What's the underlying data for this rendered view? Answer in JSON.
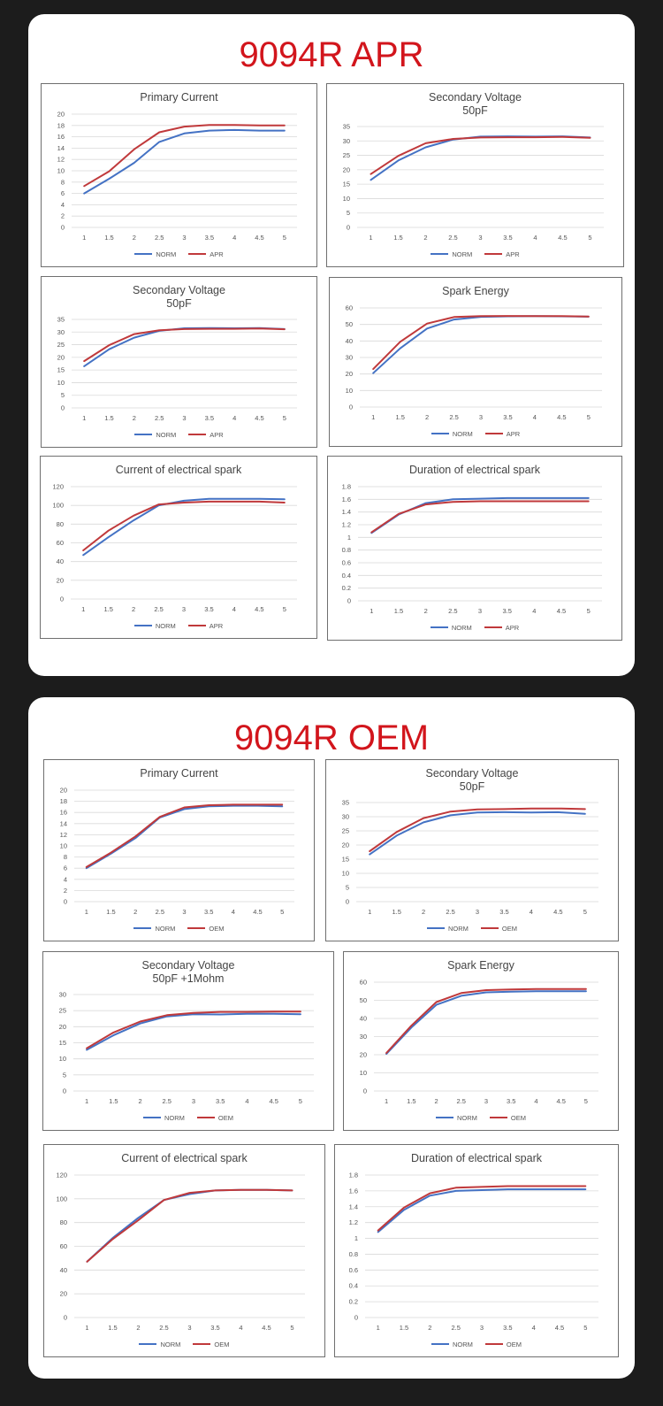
{
  "colors": {
    "norm": "#4472c4",
    "comp": "#c0393b",
    "heading": "#d2151c"
  },
  "sections": [
    {
      "title": "9094R APR"
    },
    {
      "title": "9094R OEM"
    }
  ],
  "chart_data": [
    {
      "type": "line",
      "section": "9094R APR",
      "title": "Primary Current",
      "subtitle": "",
      "x": [
        "1",
        "1.5",
        "2",
        "2.5",
        "3",
        "3.5",
        "4",
        "4.5",
        "5"
      ],
      "ylim": [
        0,
        20
      ],
      "yticks": [
        0,
        2,
        4,
        6,
        8,
        10,
        12,
        14,
        16,
        18,
        20
      ],
      "grid": true,
      "legend": "bottom",
      "series": [
        {
          "name": "NORM",
          "values": [
            6.0,
            8.6,
            11.4,
            15.1,
            16.6,
            17.1,
            17.2,
            17.1,
            17.1
          ]
        },
        {
          "name": "APR",
          "values": [
            7.3,
            9.9,
            13.8,
            16.8,
            17.8,
            18.1,
            18.1,
            18.0,
            18.0
          ]
        }
      ]
    },
    {
      "type": "line",
      "section": "9094R APR",
      "title": "Secondary Voltage",
      "subtitle": "50pF",
      "x": [
        "1",
        "1.5",
        "2",
        "2.5",
        "3",
        "3.5",
        "4",
        "4.5",
        "5"
      ],
      "ylim": [
        0,
        35
      ],
      "yticks": [
        0,
        5,
        10,
        15,
        20,
        25,
        30,
        35
      ],
      "grid": true,
      "legend": "bottom",
      "series": [
        {
          "name": "NORM",
          "values": [
            16.5,
            23.2,
            27.8,
            30.5,
            31.5,
            31.6,
            31.5,
            31.6,
            31.2
          ]
        },
        {
          "name": "APR",
          "values": [
            18.5,
            24.8,
            29.2,
            30.7,
            31.2,
            31.3,
            31.3,
            31.4,
            31.1
          ]
        }
      ]
    },
    {
      "type": "line",
      "section": "9094R APR",
      "title": "Secondary Voltage",
      "subtitle": "50pF",
      "x": [
        "1",
        "1.5",
        "2",
        "2.5",
        "3",
        "3.5",
        "4",
        "4.5",
        "5"
      ],
      "ylim": [
        0,
        35
      ],
      "yticks": [
        0,
        5,
        10,
        15,
        20,
        25,
        30,
        35
      ],
      "grid": true,
      "legend": "bottom",
      "series": [
        {
          "name": "NORM",
          "values": [
            16.5,
            23.2,
            27.8,
            30.5,
            31.5,
            31.6,
            31.5,
            31.6,
            31.2
          ]
        },
        {
          "name": "APR",
          "values": [
            18.5,
            24.8,
            29.2,
            30.7,
            31.2,
            31.3,
            31.3,
            31.4,
            31.1
          ]
        }
      ]
    },
    {
      "type": "line",
      "section": "9094R APR",
      "title": "Spark Energy",
      "subtitle": "",
      "x": [
        "1",
        "1.5",
        "2",
        "2.5",
        "3",
        "3.5",
        "4",
        "4.5",
        "5"
      ],
      "ylim": [
        0,
        60
      ],
      "yticks": [
        0,
        10,
        20,
        30,
        40,
        50,
        60
      ],
      "grid": true,
      "legend": "bottom",
      "series": [
        {
          "name": "NORM",
          "values": [
            20.5,
            35.5,
            47.5,
            53.0,
            54.6,
            54.9,
            55.0,
            54.9,
            54.7
          ]
        },
        {
          "name": "APR",
          "values": [
            23.0,
            39.5,
            50.5,
            54.5,
            55.0,
            55.1,
            55.0,
            55.0,
            54.8
          ]
        }
      ]
    },
    {
      "type": "line",
      "section": "9094R APR",
      "title": "Current of electrical spark",
      "subtitle": "",
      "x": [
        "1",
        "1.5",
        "2",
        "2.5",
        "3",
        "3.5",
        "4",
        "4.5",
        "5"
      ],
      "ylim": [
        0,
        120
      ],
      "yticks": [
        0,
        20,
        40,
        60,
        80,
        100,
        120
      ],
      "grid": true,
      "legend": "bottom",
      "series": [
        {
          "name": "NORM",
          "values": [
            47,
            66,
            84,
            100,
            105,
            107,
            107,
            107,
            106.5
          ]
        },
        {
          "name": "APR",
          "values": [
            52,
            73,
            89,
            101,
            103,
            104,
            104,
            104,
            103
          ]
        }
      ]
    },
    {
      "type": "line",
      "section": "9094R APR",
      "title": "Duration of electrical spark",
      "subtitle": "",
      "x": [
        "1",
        "1.5",
        "2",
        "2.5",
        "3",
        "3.5",
        "4",
        "4.5",
        "5"
      ],
      "ylim": [
        0,
        1.8
      ],
      "yticks": [
        0,
        0.2,
        0.4,
        0.6,
        0.8,
        1,
        1.2,
        1.4,
        1.6,
        1.8
      ],
      "grid": true,
      "legend": "bottom",
      "series": [
        {
          "name": "NORM",
          "values": [
            1.07,
            1.36,
            1.54,
            1.6,
            1.61,
            1.62,
            1.62,
            1.62,
            1.62
          ]
        },
        {
          "name": "APR",
          "values": [
            1.08,
            1.37,
            1.52,
            1.56,
            1.57,
            1.57,
            1.57,
            1.57,
            1.57
          ]
        }
      ]
    },
    {
      "type": "line",
      "section": "9094R OEM",
      "title": "Primary Current",
      "subtitle": "",
      "x": [
        "1",
        "1.5",
        "2",
        "2.5",
        "3",
        "3.5",
        "4",
        "4.5",
        "5"
      ],
      "ylim": [
        0,
        20
      ],
      "yticks": [
        0,
        2,
        4,
        6,
        8,
        10,
        12,
        14,
        16,
        18,
        20
      ],
      "grid": true,
      "legend": "bottom",
      "series": [
        {
          "name": "NORM",
          "values": [
            6.0,
            8.6,
            11.4,
            15.1,
            16.6,
            17.1,
            17.2,
            17.2,
            17.1
          ]
        },
        {
          "name": "OEM",
          "values": [
            6.2,
            8.8,
            11.7,
            15.2,
            16.9,
            17.3,
            17.4,
            17.4,
            17.4
          ]
        }
      ]
    },
    {
      "type": "line",
      "section": "9094R OEM",
      "title": "Secondary Voltage",
      "subtitle": "50pF",
      "x": [
        "1",
        "1.5",
        "2",
        "2.5",
        "3",
        "3.5",
        "4",
        "4.5",
        "5"
      ],
      "ylim": [
        0,
        35
      ],
      "yticks": [
        0,
        5,
        10,
        15,
        20,
        25,
        30,
        35
      ],
      "grid": true,
      "legend": "bottom",
      "series": [
        {
          "name": "NORM",
          "values": [
            16.7,
            23.3,
            28.0,
            30.5,
            31.5,
            31.6,
            31.5,
            31.6,
            31.0
          ]
        },
        {
          "name": "OEM",
          "values": [
            17.8,
            24.6,
            29.5,
            31.8,
            32.6,
            32.7,
            32.9,
            32.9,
            32.7
          ]
        }
      ]
    },
    {
      "type": "line",
      "section": "9094R OEM",
      "title": "Secondary Voltage",
      "subtitle": "50pF +1Mohm",
      "x": [
        "1",
        "1.5",
        "2",
        "2.5",
        "3",
        "3.5",
        "4",
        "4.5",
        "5"
      ],
      "ylim": [
        0,
        30
      ],
      "yticks": [
        0,
        5,
        10,
        15,
        20,
        25,
        30
      ],
      "grid": true,
      "legend": "bottom",
      "series": [
        {
          "name": "NORM",
          "values": [
            12.8,
            17.3,
            21.0,
            23.2,
            23.9,
            23.8,
            24.0,
            24.0,
            23.9
          ]
        },
        {
          "name": "OEM",
          "values": [
            13.3,
            18.2,
            21.6,
            23.6,
            24.3,
            24.6,
            24.6,
            24.7,
            24.7
          ]
        }
      ]
    },
    {
      "type": "line",
      "section": "9094R OEM",
      "title": "Spark Energy",
      "subtitle": "",
      "x": [
        "1",
        "1.5",
        "2",
        "2.5",
        "3",
        "3.5",
        "4",
        "4.5",
        "5"
      ],
      "ylim": [
        0,
        60
      ],
      "yticks": [
        0,
        10,
        20,
        30,
        40,
        50,
        60
      ],
      "grid": true,
      "legend": "bottom",
      "series": [
        {
          "name": "NORM",
          "values": [
            20.5,
            35.0,
            47.5,
            52.5,
            54.4,
            54.8,
            55.0,
            55.0,
            55.0
          ]
        },
        {
          "name": "OEM",
          "values": [
            21.0,
            36.0,
            49.0,
            54.0,
            55.6,
            56.0,
            56.2,
            56.2,
            56.2
          ]
        }
      ]
    },
    {
      "type": "line",
      "section": "9094R OEM",
      "title": "Current of electrical spark",
      "subtitle": "",
      "x": [
        "1",
        "1.5",
        "2",
        "2.5",
        "3",
        "3.5",
        "4",
        "4.5",
        "5"
      ],
      "ylim": [
        0,
        120
      ],
      "yticks": [
        0,
        20,
        40,
        60,
        80,
        100,
        120
      ],
      "grid": true,
      "legend": "bottom",
      "series": [
        {
          "name": "NORM",
          "values": [
            47,
            67,
            84,
            99,
            104,
            107,
            107.5,
            107.5,
            107
          ]
        },
        {
          "name": "OEM",
          "values": [
            47,
            66,
            82,
            99,
            105,
            107,
            107.5,
            107.5,
            107
          ]
        }
      ]
    },
    {
      "type": "line",
      "section": "9094R OEM",
      "title": "Duration of electrical spark",
      "subtitle": "",
      "x": [
        "1",
        "1.5",
        "2",
        "2.5",
        "3",
        "3.5",
        "4",
        "4.5",
        "5"
      ],
      "ylim": [
        0,
        1.8
      ],
      "yticks": [
        0,
        0.2,
        0.4,
        0.6,
        0.8,
        1,
        1.2,
        1.4,
        1.6,
        1.8
      ],
      "grid": true,
      "legend": "bottom",
      "series": [
        {
          "name": "NORM",
          "values": [
            1.08,
            1.36,
            1.54,
            1.6,
            1.61,
            1.62,
            1.62,
            1.62,
            1.62
          ]
        },
        {
          "name": "OEM",
          "values": [
            1.1,
            1.39,
            1.57,
            1.64,
            1.65,
            1.66,
            1.66,
            1.66,
            1.66
          ]
        }
      ]
    }
  ]
}
